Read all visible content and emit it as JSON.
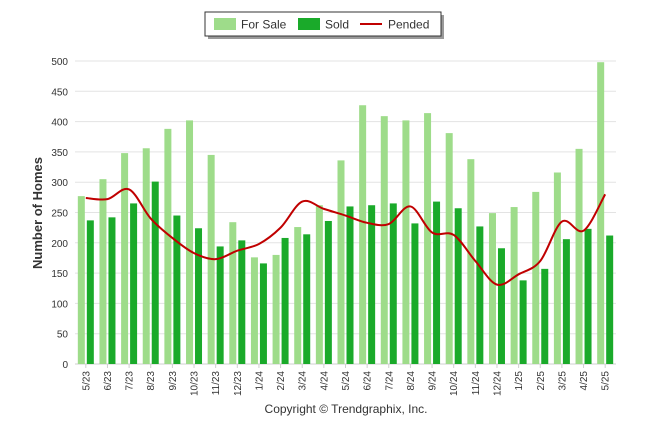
{
  "chart_data": {
    "type": "bar",
    "categories": [
      "5/23",
      "6/23",
      "7/23",
      "8/23",
      "9/23",
      "10/23",
      "11/23",
      "12/23",
      "1/24",
      "2/24",
      "3/24",
      "4/24",
      "5/24",
      "6/24",
      "7/24",
      "8/24",
      "9/24",
      "10/24",
      "11/24",
      "12/24",
      "1/25",
      "2/25",
      "3/25",
      "4/25",
      "5/25"
    ],
    "series": [
      {
        "name": "For Sale",
        "type": "bar",
        "color": "#9edc8a",
        "values": [
          277,
          305,
          348,
          356,
          388,
          402,
          345,
          234,
          176,
          180,
          226,
          262,
          336,
          427,
          409,
          402,
          414,
          381,
          338,
          249,
          259,
          284,
          316,
          355,
          498
        ]
      },
      {
        "name": "Sold",
        "type": "bar",
        "color": "#1aaa2a",
        "values": [
          237,
          242,
          265,
          301,
          245,
          224,
          194,
          204,
          166,
          208,
          214,
          236,
          260,
          262,
          265,
          232,
          268,
          257,
          227,
          191,
          138,
          157,
          206,
          223,
          212
        ]
      },
      {
        "name": "Pended",
        "type": "line",
        "color": "#c00000",
        "values": [
          274,
          272,
          288,
          240,
          208,
          183,
          173,
          187,
          198,
          225,
          268,
          256,
          245,
          233,
          231,
          260,
          217,
          213,
          170,
          131,
          148,
          170,
          235,
          220,
          280
        ]
      }
    ],
    "xlabel": "",
    "ylabel": "Number of Homes",
    "ylim": [
      0,
      500
    ],
    "yticks": [
      0,
      50,
      100,
      150,
      200,
      250,
      300,
      350,
      400,
      450,
      500
    ],
    "grid": true,
    "legend": "top-center",
    "footer": "Copyright © Trendgraphix, Inc."
  }
}
